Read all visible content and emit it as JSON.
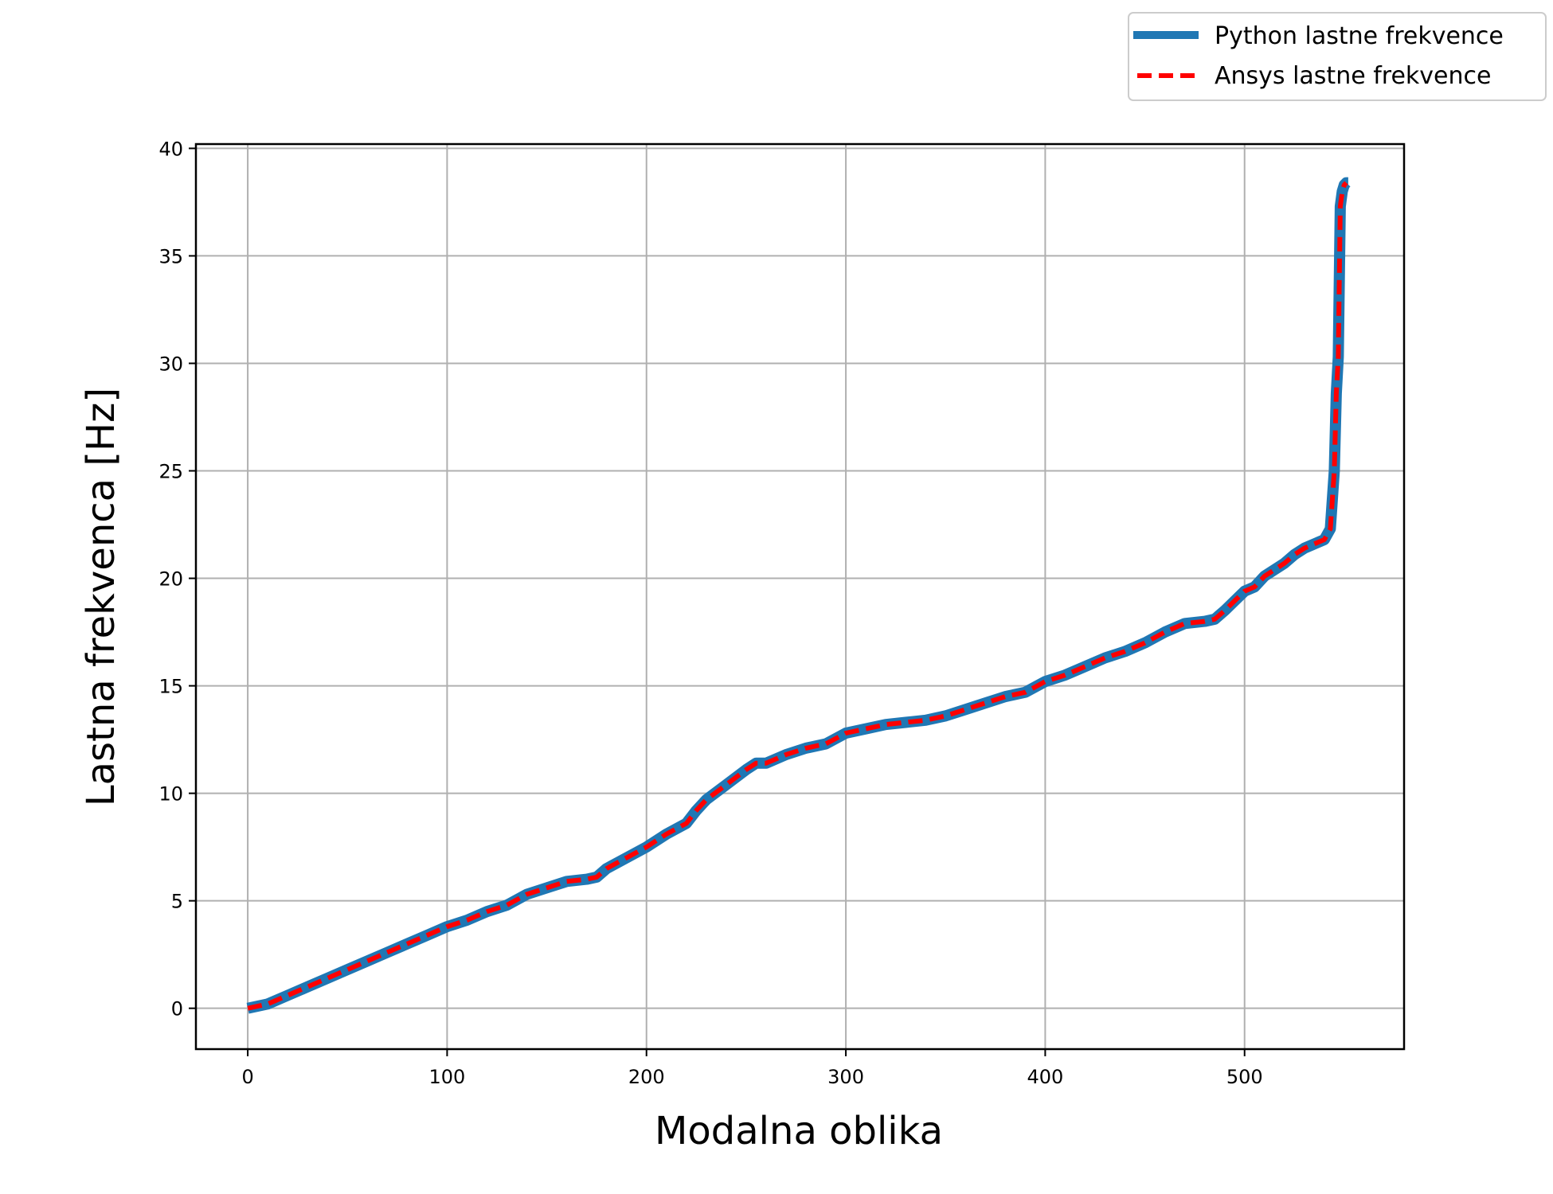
{
  "chart_data": {
    "type": "line",
    "xlabel": "Modalna oblika",
    "ylabel": "Lastna frekvenca [Hz]",
    "xlim": [
      -26,
      580
    ],
    "ylim": [
      -1.9,
      40.2
    ],
    "xticks": [
      0,
      100,
      200,
      300,
      400,
      500
    ],
    "yticks": [
      0,
      5,
      10,
      15,
      20,
      25,
      30,
      35,
      40
    ],
    "grid": true,
    "legend_position": "top-right, outside plot",
    "series": [
      {
        "name": "Python lastne frekvence",
        "color": "#1f77b4",
        "style": "solid",
        "x": [
          0,
          10,
          20,
          30,
          40,
          50,
          60,
          70,
          80,
          90,
          100,
          110,
          120,
          130,
          140,
          150,
          160,
          170,
          175,
          180,
          190,
          200,
          210,
          220,
          225,
          230,
          240,
          250,
          255,
          260,
          270,
          280,
          290,
          300,
          310,
          320,
          330,
          340,
          350,
          360,
          370,
          380,
          390,
          400,
          410,
          420,
          430,
          440,
          450,
          460,
          470,
          480,
          485,
          490,
          500,
          505,
          510,
          520,
          525,
          530,
          540,
          543,
          545,
          546,
          547,
          548,
          549,
          550,
          551,
          552
        ],
        "y": [
          0,
          0.2,
          0.6,
          1.0,
          1.4,
          1.8,
          2.2,
          2.6,
          3.0,
          3.4,
          3.8,
          4.1,
          4.5,
          4.8,
          5.3,
          5.6,
          5.9,
          6.0,
          6.1,
          6.5,
          7.0,
          7.5,
          8.1,
          8.6,
          9.2,
          9.7,
          10.4,
          11.1,
          11.4,
          11.4,
          11.8,
          12.1,
          12.3,
          12.8,
          13.0,
          13.2,
          13.3,
          13.4,
          13.6,
          13.9,
          14.2,
          14.5,
          14.7,
          15.2,
          15.5,
          15.9,
          16.3,
          16.6,
          17.0,
          17.5,
          17.9,
          18.0,
          18.1,
          18.5,
          19.4,
          19.6,
          20.1,
          20.7,
          21.1,
          21.4,
          21.8,
          22.3,
          25.0,
          28.6,
          30.3,
          37.3,
          38.0,
          38.3,
          38.4,
          38.4
        ]
      },
      {
        "name": "Ansys lastne frekvence",
        "color": "#ff0000",
        "style": "dashed",
        "x": [
          0,
          10,
          20,
          30,
          40,
          50,
          60,
          70,
          80,
          90,
          100,
          110,
          120,
          130,
          140,
          150,
          160,
          170,
          175,
          180,
          190,
          200,
          210,
          220,
          225,
          230,
          240,
          250,
          255,
          260,
          270,
          280,
          290,
          300,
          310,
          320,
          330,
          340,
          350,
          360,
          370,
          380,
          390,
          400,
          410,
          420,
          430,
          440,
          450,
          460,
          470,
          480,
          485,
          490,
          500,
          505,
          510,
          520,
          525,
          530,
          540,
          543,
          545,
          546,
          547,
          548,
          549,
          550,
          551
        ],
        "y": [
          0,
          0.2,
          0.6,
          1.0,
          1.4,
          1.8,
          2.2,
          2.6,
          3.0,
          3.4,
          3.8,
          4.1,
          4.5,
          4.8,
          5.3,
          5.6,
          5.9,
          6.0,
          6.1,
          6.5,
          7.0,
          7.5,
          8.1,
          8.6,
          9.2,
          9.7,
          10.4,
          11.1,
          11.4,
          11.4,
          11.8,
          12.1,
          12.3,
          12.8,
          13.0,
          13.2,
          13.3,
          13.4,
          13.6,
          13.9,
          14.2,
          14.5,
          14.7,
          15.2,
          15.5,
          15.9,
          16.3,
          16.6,
          17.0,
          17.5,
          17.9,
          18.0,
          18.1,
          18.5,
          19.4,
          19.6,
          20.1,
          20.7,
          21.1,
          21.4,
          21.8,
          22.3,
          25.0,
          28.6,
          30.3,
          37.3,
          38.0,
          38.3,
          38.4
        ]
      }
    ]
  }
}
